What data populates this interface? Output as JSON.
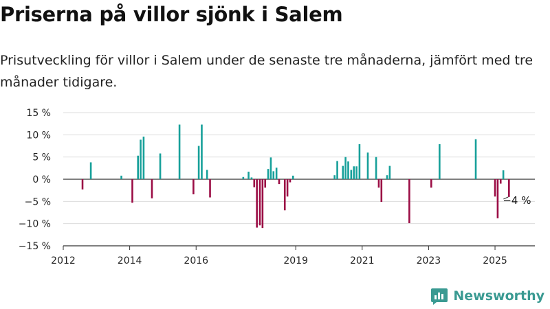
{
  "title": "Priserna på villor sjönk i Salem",
  "subtitle": "Prisutveckling för villor i Salem under de senaste tre månaderna, jämfört med tre månader tidigare.",
  "brand": {
    "name": "Newsworthy",
    "color": "#3a9a92"
  },
  "colors": {
    "positive": "#17a09a",
    "negative": "#9b0d45",
    "axis": "#333333",
    "grid": "#dcdcdc"
  },
  "chart_data": {
    "type": "bar",
    "title": "Priserna på villor sjönk i Salem",
    "subtitle": "Prisutveckling för villor i Salem under de senaste tre månaderna, jämfört med tre månader tidigare.",
    "xlabel": "",
    "ylabel": "",
    "xlim": [
      2012.0,
      2026.2
    ],
    "ylim": [
      -15,
      15
    ],
    "grid": true,
    "y_ticks": [
      {
        "value": 15,
        "label": "15 %"
      },
      {
        "value": 10,
        "label": "10 %"
      },
      {
        "value": 5,
        "label": "5 %"
      },
      {
        "value": 0,
        "label": "0 %"
      },
      {
        "value": -5,
        "label": "−5 %"
      },
      {
        "value": -10,
        "label": "−10 %"
      },
      {
        "value": -15,
        "label": "−15 %"
      }
    ],
    "x_ticks": [
      {
        "value": 2012.0,
        "label": "2012"
      },
      {
        "value": 2014.0,
        "label": "2014"
      },
      {
        "value": 2016.0,
        "label": "2016"
      },
      {
        "value": 2019.0,
        "label": "2019"
      },
      {
        "value": 2021.0,
        "label": "2021"
      },
      {
        "value": 2023.0,
        "label": "2023"
      },
      {
        "value": 2025.0,
        "label": "2025"
      }
    ],
    "points": [
      {
        "x": 2012.58,
        "y": -2.3
      },
      {
        "x": 2012.83,
        "y": 3.8
      },
      {
        "x": 2013.75,
        "y": 0.8
      },
      {
        "x": 2014.08,
        "y": -5.3
      },
      {
        "x": 2014.25,
        "y": 5.3
      },
      {
        "x": 2014.33,
        "y": 8.9
      },
      {
        "x": 2014.42,
        "y": 9.6
      },
      {
        "x": 2014.67,
        "y": -4.3
      },
      {
        "x": 2014.92,
        "y": 5.8
      },
      {
        "x": 2015.5,
        "y": 12.3
      },
      {
        "x": 2015.92,
        "y": -3.4
      },
      {
        "x": 2016.08,
        "y": 7.5
      },
      {
        "x": 2016.17,
        "y": 12.3
      },
      {
        "x": 2016.33,
        "y": 2.1
      },
      {
        "x": 2016.42,
        "y": -4.1
      },
      {
        "x": 2017.42,
        "y": 0.5
      },
      {
        "x": 2017.58,
        "y": 1.7
      },
      {
        "x": 2017.67,
        "y": 0.4
      },
      {
        "x": 2017.75,
        "y": -1.8
      },
      {
        "x": 2017.83,
        "y": -10.9
      },
      {
        "x": 2017.92,
        "y": -10.4
      },
      {
        "x": 2018.0,
        "y": -11.0
      },
      {
        "x": 2018.08,
        "y": -1.9
      },
      {
        "x": 2018.17,
        "y": 2.3
      },
      {
        "x": 2018.25,
        "y": 4.9
      },
      {
        "x": 2018.33,
        "y": 1.8
      },
      {
        "x": 2018.42,
        "y": 2.6
      },
      {
        "x": 2018.5,
        "y": -1.1
      },
      {
        "x": 2018.67,
        "y": -7.0
      },
      {
        "x": 2018.75,
        "y": -3.9
      },
      {
        "x": 2018.83,
        "y": -0.7
      },
      {
        "x": 2018.92,
        "y": 0.8
      },
      {
        "x": 2020.17,
        "y": 0.9
      },
      {
        "x": 2020.25,
        "y": 4.1
      },
      {
        "x": 2020.42,
        "y": 3.0
      },
      {
        "x": 2020.5,
        "y": 5.0
      },
      {
        "x": 2020.58,
        "y": 4.0
      },
      {
        "x": 2020.67,
        "y": 2.1
      },
      {
        "x": 2020.75,
        "y": 2.9
      },
      {
        "x": 2020.83,
        "y": 2.9
      },
      {
        "x": 2020.92,
        "y": 7.9
      },
      {
        "x": 2021.17,
        "y": 6.0
      },
      {
        "x": 2021.42,
        "y": 5.0
      },
      {
        "x": 2021.5,
        "y": -1.9
      },
      {
        "x": 2021.58,
        "y": -5.1
      },
      {
        "x": 2021.75,
        "y": 0.9
      },
      {
        "x": 2021.83,
        "y": 3.0
      },
      {
        "x": 2022.42,
        "y": -9.9
      },
      {
        "x": 2023.08,
        "y": -1.9
      },
      {
        "x": 2023.33,
        "y": 7.9
      },
      {
        "x": 2024.42,
        "y": 9.0
      },
      {
        "x": 2025.0,
        "y": -3.9
      },
      {
        "x": 2025.08,
        "y": -8.8
      },
      {
        "x": 2025.17,
        "y": -1.0
      },
      {
        "x": 2025.25,
        "y": 2.0
      },
      {
        "x": 2025.42,
        "y": -4.0
      }
    ],
    "annotation": {
      "x": 2025.42,
      "y": -4.0,
      "label": "−4 %"
    }
  }
}
